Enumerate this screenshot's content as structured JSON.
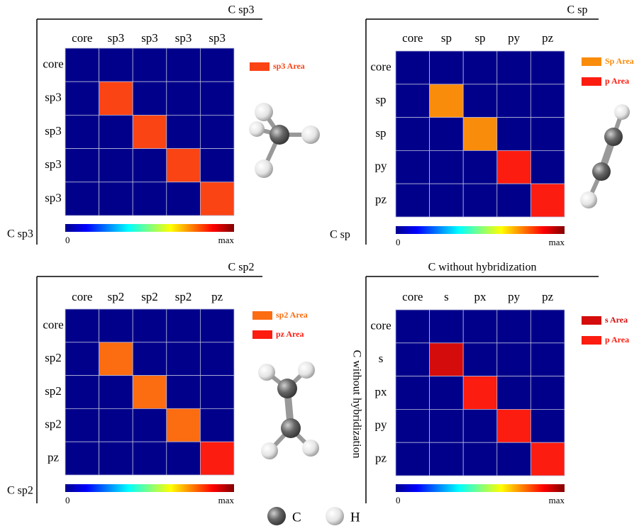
{
  "panels": [
    {
      "title": "C sp3",
      "side_label": "C sp3",
      "columns": [
        "core",
        "sp3",
        "sp3",
        "sp3",
        "sp3"
      ],
      "rows": [
        "core",
        "sp3",
        "sp3",
        "sp3",
        "sp3"
      ],
      "legend": [
        {
          "label": "sp3 Area",
          "color": "#fa4414"
        }
      ],
      "diagonal": [
        null,
        "#fa4414",
        "#fa4414",
        "#fa4414",
        "#fa4414"
      ],
      "colorbar": {
        "min_label": "0",
        "max_label": "max"
      }
    },
    {
      "title": "C sp",
      "side_label": "C sp",
      "columns": [
        "core",
        "sp",
        "sp",
        "py",
        "pz"
      ],
      "rows": [
        "core",
        "sp",
        "sp",
        "py",
        "pz"
      ],
      "legend": [
        {
          "label": "Sp Area",
          "color": "#fa8c0c"
        },
        {
          "label": "p Area",
          "color": "#fc1c10"
        }
      ],
      "diagonal": [
        null,
        "#fa8c0c",
        "#fa8c0c",
        "#fc1c10",
        "#fc1c10"
      ],
      "colorbar": {
        "min_label": "0",
        "max_label": "max"
      }
    },
    {
      "title": "C sp2",
      "side_label": "C sp2",
      "columns": [
        "core",
        "sp2",
        "sp2",
        "sp2",
        "pz"
      ],
      "rows": [
        "core",
        "sp2",
        "sp2",
        "sp2",
        "pz"
      ],
      "legend": [
        {
          "label": "sp2  Area",
          "color": "#fc6c10"
        },
        {
          "label": "pz Area",
          "color": "#fc1c10"
        }
      ],
      "diagonal": [
        null,
        "#fc6c10",
        "#fc6c10",
        "#fc6c10",
        "#fc1c10"
      ],
      "colorbar": {
        "min_label": "0",
        "max_label": "max"
      }
    },
    {
      "title": "C without hybridization",
      "side_label": "C without hybridization",
      "columns": [
        "core",
        "s",
        "px",
        "py",
        "pz"
      ],
      "rows": [
        "core",
        "s",
        "px",
        "py",
        "pz"
      ],
      "legend": [
        {
          "label": "s Area",
          "color": "#d40c0c"
        },
        {
          "label": "p Area",
          "color": "#fc1c10"
        }
      ],
      "diagonal": [
        null,
        "#d40c0c",
        "#fc1c10",
        "#fc1c10",
        "#fc1c10"
      ],
      "colorbar": {
        "min_label": "0",
        "max_label": "max"
      }
    }
  ],
  "atom_legend": [
    {
      "label": "C",
      "color": "#555555"
    },
    {
      "label": "H",
      "color": "#eeeeee"
    }
  ]
}
